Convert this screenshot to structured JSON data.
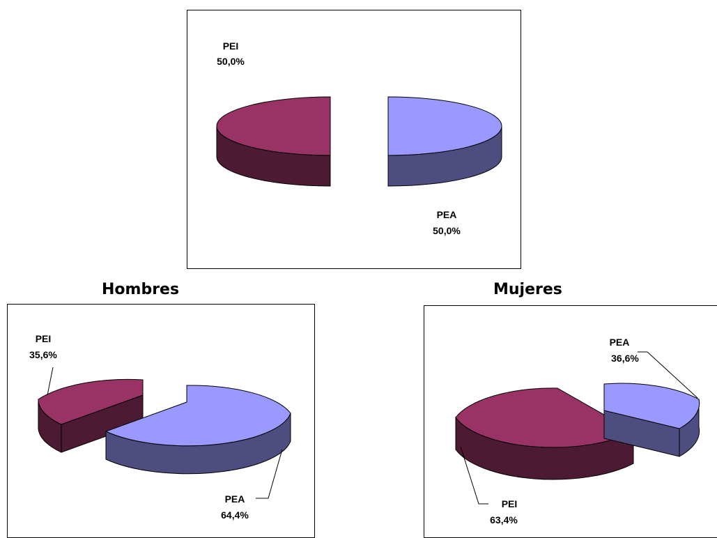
{
  "chart_data": [
    {
      "type": "pie",
      "title": "",
      "categories": [
        "PEA",
        "PEI"
      ],
      "values": [
        50.0,
        50.0
      ],
      "labels": {
        "PEA": "PEA",
        "PEI": "PEI"
      },
      "value_labels": {
        "PEA": "50,0%",
        "PEI": "50,0%"
      },
      "colors": {
        "PEA_top": "#9999ff",
        "PEA_side": "#4d4d80",
        "PEI_top": "#993366",
        "PEI_side": "#4d1a33"
      },
      "exploded": true,
      "three_d": true
    },
    {
      "type": "pie",
      "title": "Hombres",
      "categories": [
        "PEA",
        "PEI"
      ],
      "values": [
        64.4,
        35.6
      ],
      "labels": {
        "PEA": "PEA",
        "PEI": "PEI"
      },
      "value_labels": {
        "PEA": "64,4%",
        "PEI": "35,6%"
      },
      "colors": {
        "PEA_top": "#9999ff",
        "PEA_side": "#4d4d80",
        "PEI_top": "#993366",
        "PEI_side": "#4d1a33"
      },
      "exploded": true,
      "three_d": true
    },
    {
      "type": "pie",
      "title": "Mujeres",
      "categories": [
        "PEA",
        "PEI"
      ],
      "values": [
        36.6,
        63.4
      ],
      "labels": {
        "PEA": "PEA",
        "PEI": "PEI"
      },
      "value_labels": {
        "PEA": "36,6%",
        "PEI": "63,4%"
      },
      "colors": {
        "PEA_top": "#9999ff",
        "PEA_side": "#4d4d80",
        "PEI_top": "#993366",
        "PEI_side": "#4d1a33"
      },
      "exploded": true,
      "three_d": true
    }
  ]
}
